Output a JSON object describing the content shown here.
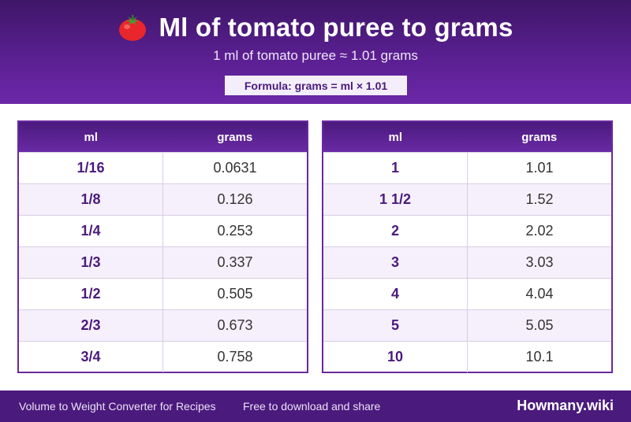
{
  "header": {
    "title": "Ml of tomato puree to grams",
    "subtitle": "1 ml of tomato puree ≈ 1.01 grams",
    "formula": "Formula: grams = ml × 1.01"
  },
  "tables": [
    {
      "col_ml": "ml",
      "col_g": "grams",
      "rows": [
        {
          "ml": "1/16",
          "g": "0.0631"
        },
        {
          "ml": "1/8",
          "g": "0.126"
        },
        {
          "ml": "1/4",
          "g": "0.253"
        },
        {
          "ml": "1/3",
          "g": "0.337"
        },
        {
          "ml": "1/2",
          "g": "0.505"
        },
        {
          "ml": "2/3",
          "g": "0.673"
        },
        {
          "ml": "3/4",
          "g": "0.758"
        }
      ]
    },
    {
      "col_ml": "ml",
      "col_g": "grams",
      "rows": [
        {
          "ml": "1",
          "g": "1.01"
        },
        {
          "ml": "1 1/2",
          "g": "1.52"
        },
        {
          "ml": "2",
          "g": "2.02"
        },
        {
          "ml": "3",
          "g": "3.03"
        },
        {
          "ml": "4",
          "g": "4.04"
        },
        {
          "ml": "5",
          "g": "5.05"
        },
        {
          "ml": "10",
          "g": "10.1"
        }
      ]
    }
  ],
  "footer": {
    "left": "Volume to Weight Converter for Recipes",
    "middle": "Free to download and share",
    "brand": "Howmany.wiki"
  },
  "colors": {
    "header_dark": "#3e1667",
    "header_light": "#6c28a8",
    "accent": "#4a1a7d"
  },
  "icons": {
    "title_icon": "tomato-icon"
  }
}
